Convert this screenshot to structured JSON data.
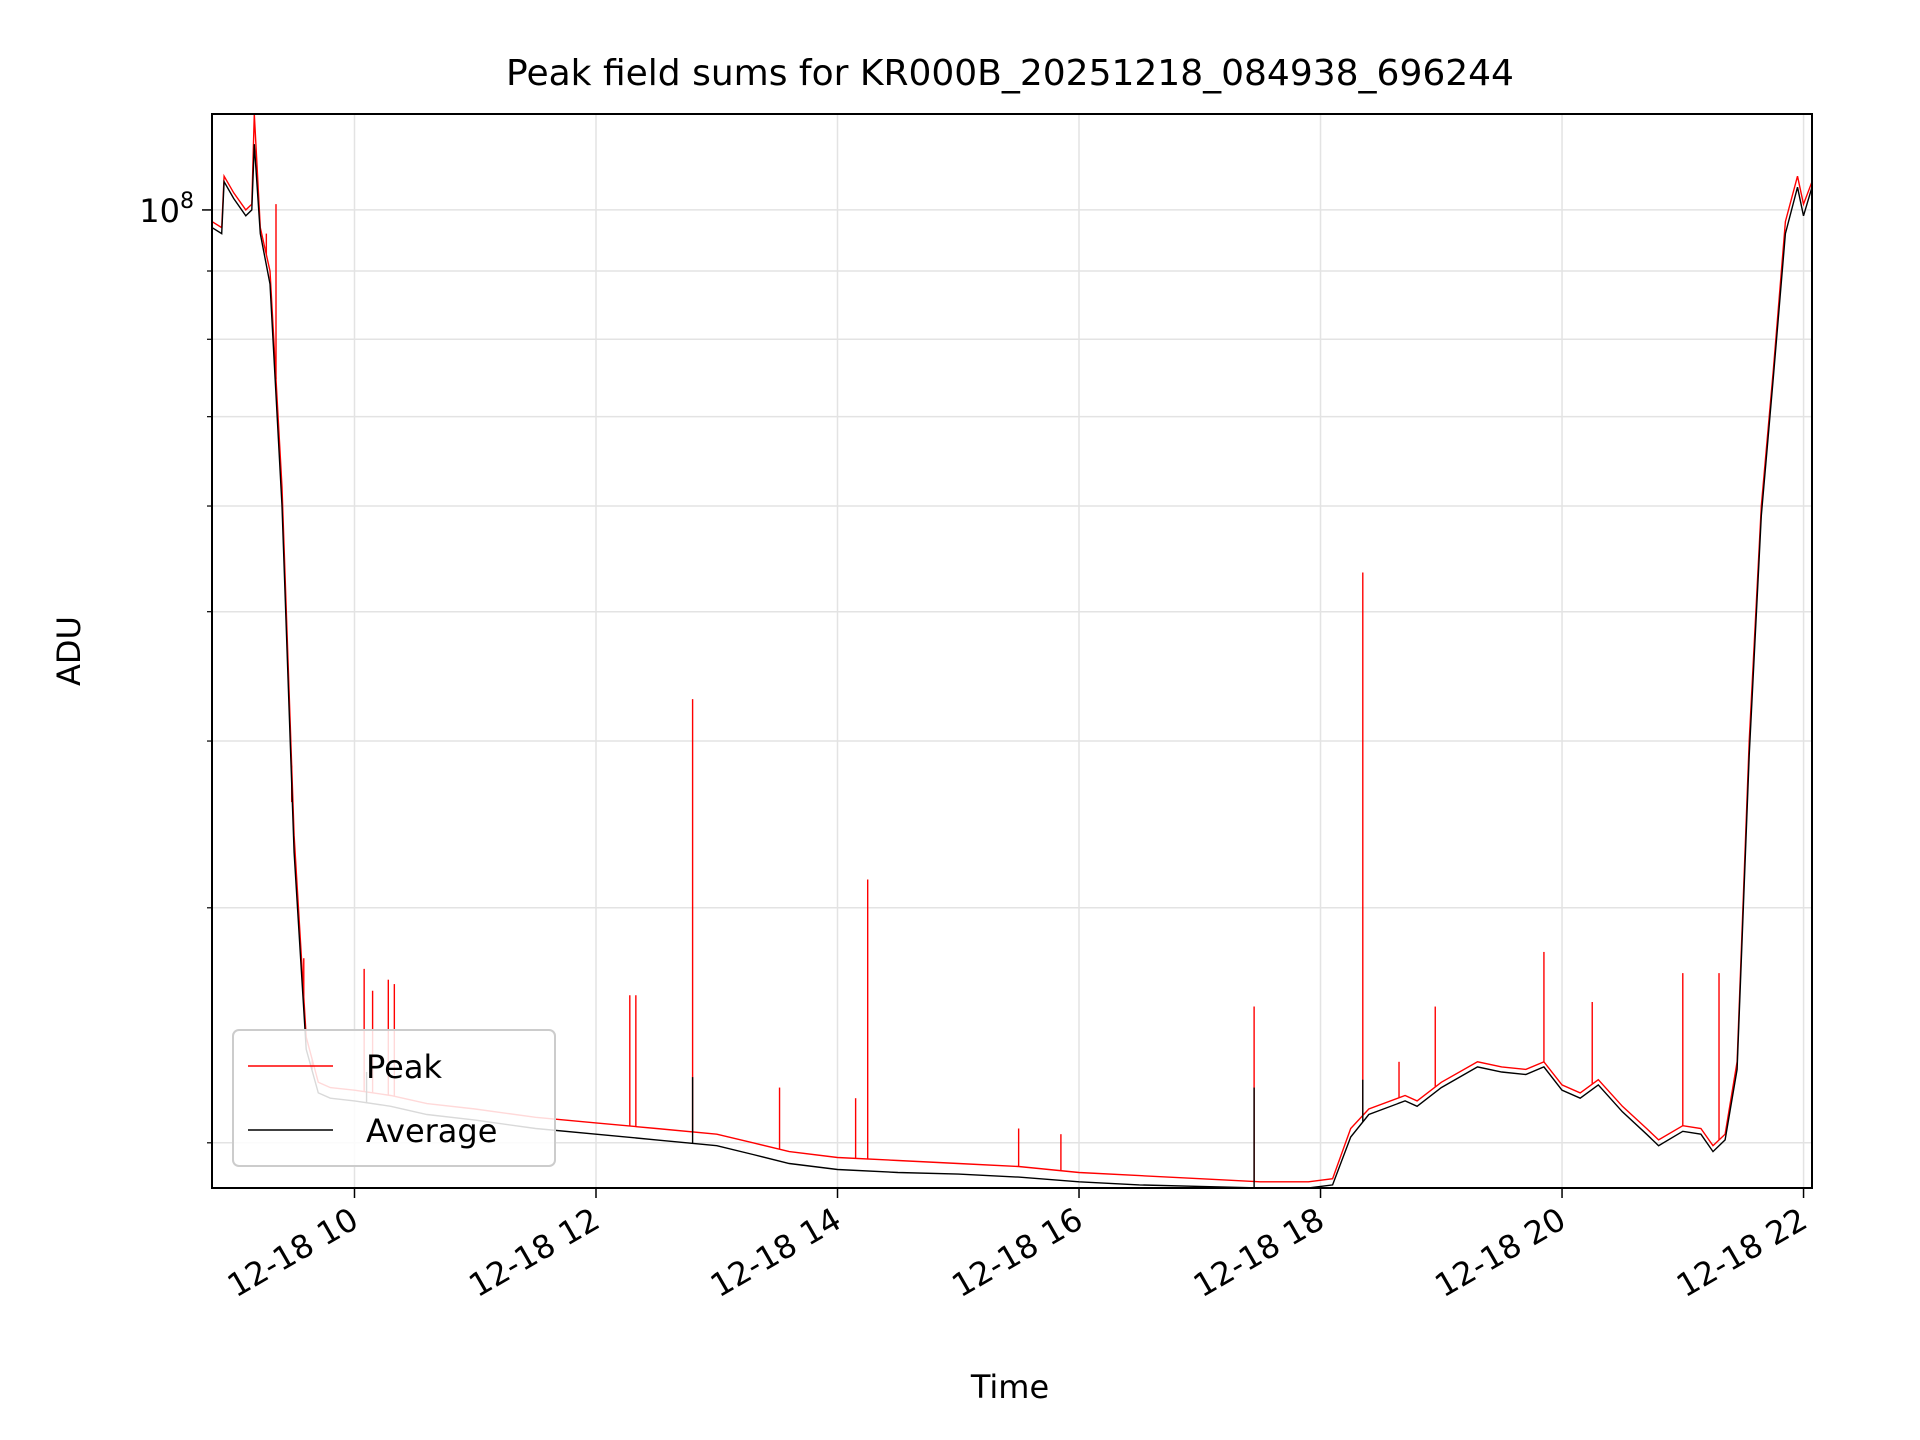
{
  "chart_data": {
    "type": "line",
    "title": "Peak field sums for KR000B_20251218_084938_696244",
    "xlabel": "Time",
    "ylabel": "ADU",
    "yscale": "log",
    "xlim_hours": [
      8.82,
      22.07
    ],
    "ylim": [
      18500000,
      118000000
    ],
    "grid": true,
    "legend_position": "lower-left",
    "x_ticks": [
      {
        "hour": 10,
        "label": "12-18 10"
      },
      {
        "hour": 12,
        "label": "12-18 12"
      },
      {
        "hour": 14,
        "label": "12-18 14"
      },
      {
        "hour": 16,
        "label": "12-18 16"
      },
      {
        "hour": 18,
        "label": "12-18 18"
      },
      {
        "hour": 20,
        "label": "12-18 20"
      },
      {
        "hour": 22,
        "label": "12-18 22"
      }
    ],
    "y_major_tick": {
      "value": 100000000,
      "base": "10",
      "exponent": "8"
    },
    "y_minor_ticks": [
      20000000,
      30000000,
      40000000,
      50000000,
      60000000,
      70000000,
      80000000,
      90000000
    ],
    "series": [
      {
        "name": "Peak",
        "color": "#ff0000",
        "points": [
          [
            8.82,
            98000000
          ],
          [
            8.9,
            97000000
          ],
          [
            8.92,
            106000000
          ],
          [
            9.0,
            103000000
          ],
          [
            9.1,
            100000000
          ],
          [
            9.15,
            101000000
          ],
          [
            9.17,
            118000000
          ],
          [
            9.22,
            97000000
          ],
          [
            9.3,
            90000000
          ],
          [
            9.4,
            62000000
          ],
          [
            9.5,
            34000000
          ],
          [
            9.6,
            24000000
          ],
          [
            9.7,
            22200000
          ],
          [
            9.8,
            22000000
          ],
          [
            10.0,
            21900000
          ],
          [
            10.3,
            21700000
          ],
          [
            10.6,
            21400000
          ],
          [
            11.0,
            21200000
          ],
          [
            11.5,
            20900000
          ],
          [
            12.0,
            20700000
          ],
          [
            12.5,
            20500000
          ],
          [
            13.0,
            20300000
          ],
          [
            13.3,
            20000000
          ],
          [
            13.6,
            19700000
          ],
          [
            14.0,
            19500000
          ],
          [
            14.5,
            19400000
          ],
          [
            15.0,
            19300000
          ],
          [
            15.5,
            19200000
          ],
          [
            16.0,
            19000000
          ],
          [
            16.5,
            18900000
          ],
          [
            17.0,
            18800000
          ],
          [
            17.5,
            18700000
          ],
          [
            17.9,
            18700000
          ],
          [
            18.1,
            18800000
          ],
          [
            18.25,
            20500000
          ],
          [
            18.4,
            21200000
          ],
          [
            18.7,
            21700000
          ],
          [
            18.8,
            21500000
          ],
          [
            19.0,
            22200000
          ],
          [
            19.3,
            23000000
          ],
          [
            19.5,
            22800000
          ],
          [
            19.7,
            22700000
          ],
          [
            19.85,
            23000000
          ],
          [
            20.0,
            22100000
          ],
          [
            20.15,
            21800000
          ],
          [
            20.3,
            22300000
          ],
          [
            20.5,
            21300000
          ],
          [
            20.7,
            20500000
          ],
          [
            20.8,
            20100000
          ],
          [
            21.0,
            20600000
          ],
          [
            21.15,
            20500000
          ],
          [
            21.25,
            19900000
          ],
          [
            21.35,
            20300000
          ],
          [
            21.45,
            23000000
          ],
          [
            21.55,
            40000000
          ],
          [
            21.65,
            60000000
          ],
          [
            21.75,
            76000000
          ],
          [
            21.85,
            98000000
          ],
          [
            21.95,
            106000000
          ],
          [
            22.0,
            101000000
          ],
          [
            22.07,
            105000000
          ]
        ],
        "spikes": [
          [
            9.27,
            96000000
          ],
          [
            9.35,
            101000000
          ],
          [
            9.48,
            36000000
          ],
          [
            9.58,
            27500000
          ],
          [
            9.65,
            22700000
          ],
          [
            10.08,
            27000000
          ],
          [
            10.15,
            26000000
          ],
          [
            10.28,
            26500000
          ],
          [
            10.33,
            26300000
          ],
          [
            12.28,
            25800000
          ],
          [
            12.33,
            25800000
          ],
          [
            12.8,
            43000000
          ],
          [
            13.52,
            22000000
          ],
          [
            14.15,
            21600000
          ],
          [
            14.25,
            31500000
          ],
          [
            15.5,
            20500000
          ],
          [
            15.85,
            20300000
          ],
          [
            17.45,
            25300000
          ],
          [
            18.35,
            53500000
          ],
          [
            18.65,
            23000000
          ],
          [
            18.95,
            25300000
          ],
          [
            19.85,
            27800000
          ],
          [
            20.25,
            25500000
          ],
          [
            21.0,
            26800000
          ],
          [
            21.3,
            26800000
          ]
        ]
      },
      {
        "name": "Average",
        "color": "#000000",
        "points": [
          [
            8.82,
            97000000
          ],
          [
            8.9,
            96000000
          ],
          [
            8.92,
            105000000
          ],
          [
            9.0,
            102000000
          ],
          [
            9.1,
            99000000
          ],
          [
            9.15,
            100000000
          ],
          [
            9.17,
            112000000
          ],
          [
            9.22,
            96000000
          ],
          [
            9.3,
            88000000
          ],
          [
            9.4,
            60000000
          ],
          [
            9.5,
            33000000
          ],
          [
            9.6,
            23500000
          ],
          [
            9.7,
            21800000
          ],
          [
            9.8,
            21600000
          ],
          [
            10.0,
            21500000
          ],
          [
            10.3,
            21300000
          ],
          [
            10.6,
            21000000
          ],
          [
            11.0,
            20800000
          ],
          [
            11.5,
            20500000
          ],
          [
            12.0,
            20300000
          ],
          [
            12.5,
            20100000
          ],
          [
            13.0,
            19900000
          ],
          [
            13.3,
            19600000
          ],
          [
            13.6,
            19300000
          ],
          [
            14.0,
            19100000
          ],
          [
            14.5,
            19000000
          ],
          [
            15.0,
            18950000
          ],
          [
            15.5,
            18850000
          ],
          [
            16.0,
            18700000
          ],
          [
            16.5,
            18600000
          ],
          [
            17.0,
            18550000
          ],
          [
            17.5,
            18500000
          ],
          [
            17.9,
            18500000
          ],
          [
            18.1,
            18600000
          ],
          [
            18.25,
            20200000
          ],
          [
            18.4,
            21000000
          ],
          [
            18.7,
            21500000
          ],
          [
            18.8,
            21300000
          ],
          [
            19.0,
            22000000
          ],
          [
            19.3,
            22800000
          ],
          [
            19.5,
            22600000
          ],
          [
            19.7,
            22500000
          ],
          [
            19.85,
            22800000
          ],
          [
            20.0,
            21900000
          ],
          [
            20.15,
            21600000
          ],
          [
            20.3,
            22100000
          ],
          [
            20.5,
            21100000
          ],
          [
            20.7,
            20300000
          ],
          [
            20.8,
            19900000
          ],
          [
            21.0,
            20400000
          ],
          [
            21.15,
            20300000
          ],
          [
            21.25,
            19700000
          ],
          [
            21.35,
            20100000
          ],
          [
            21.45,
            22700000
          ],
          [
            21.55,
            39000000
          ],
          [
            21.65,
            59000000
          ],
          [
            21.75,
            75000000
          ],
          [
            21.85,
            96000000
          ],
          [
            21.95,
            104000000
          ],
          [
            22.0,
            99000000
          ],
          [
            22.07,
            104000000
          ]
        ],
        "spikes": [
          [
            10.1,
            22600000
          ],
          [
            12.8,
            22400000
          ],
          [
            17.45,
            22000000
          ],
          [
            18.35,
            22300000
          ]
        ]
      }
    ]
  }
}
